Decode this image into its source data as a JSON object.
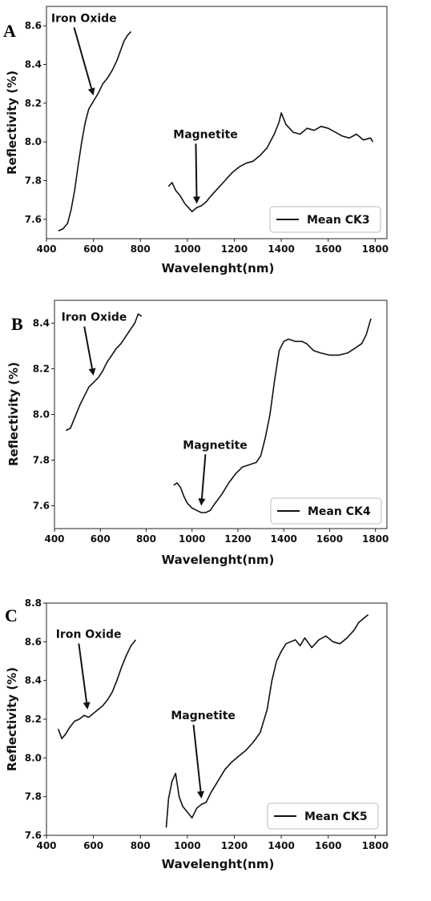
{
  "chart_data": [
    {
      "type": "line",
      "panel_label": "A",
      "xlabel": "Wavelenght(nm)",
      "ylabel": "Reflectivity (%)",
      "xlim": [
        400,
        1850
      ],
      "ylim": [
        7.5,
        8.7
      ],
      "xticks": [
        400,
        600,
        800,
        1000,
        1200,
        1400,
        1600,
        1800
      ],
      "yticks": [
        7.6,
        7.8,
        8.0,
        8.2,
        8.4,
        8.6
      ],
      "legend": {
        "label": "Mean CK3",
        "position": "lower-right"
      },
      "annotations": [
        {
          "text": "Iron Oxide",
          "text_x": 420,
          "text_y": 8.62,
          "point_x": 600,
          "point_y": 8.24
        },
        {
          "text": "Magnetite",
          "text_x": 940,
          "text_y": 8.02,
          "point_x": 1040,
          "point_y": 7.68
        }
      ],
      "series": [
        {
          "segments": [
            [
              [
                450,
                7.54
              ],
              [
                470,
                7.55
              ],
              [
                490,
                7.58
              ],
              [
                505,
                7.65
              ],
              [
                520,
                7.75
              ],
              [
                535,
                7.88
              ],
              [
                550,
                8.0
              ],
              [
                565,
                8.1
              ],
              [
                580,
                8.17
              ],
              [
                600,
                8.21
              ],
              [
                620,
                8.25
              ],
              [
                640,
                8.3
              ],
              [
                660,
                8.33
              ],
              [
                680,
                8.37
              ],
              [
                700,
                8.42
              ],
              [
                715,
                8.47
              ],
              [
                730,
                8.52
              ],
              [
                745,
                8.55
              ],
              [
                760,
                8.57
              ]
            ],
            [
              [
                920,
                7.77
              ],
              [
                935,
                7.79
              ],
              [
                950,
                7.75
              ],
              [
                970,
                7.72
              ],
              [
                990,
                7.68
              ],
              [
                1005,
                7.66
              ],
              [
                1020,
                7.64
              ],
              [
                1040,
                7.66
              ],
              [
                1060,
                7.67
              ],
              [
                1080,
                7.69
              ],
              [
                1100,
                7.72
              ],
              [
                1130,
                7.76
              ],
              [
                1160,
                7.8
              ],
              [
                1190,
                7.84
              ],
              [
                1220,
                7.87
              ],
              [
                1250,
                7.89
              ],
              [
                1280,
                7.9
              ],
              [
                1310,
                7.93
              ],
              [
                1340,
                7.97
              ],
              [
                1370,
                8.04
              ],
              [
                1390,
                8.1
              ],
              [
                1400,
                8.15
              ],
              [
                1420,
                8.09
              ],
              [
                1450,
                8.05
              ],
              [
                1480,
                8.04
              ],
              [
                1510,
                8.07
              ],
              [
                1540,
                8.06
              ],
              [
                1570,
                8.08
              ],
              [
                1600,
                8.07
              ],
              [
                1630,
                8.05
              ],
              [
                1660,
                8.03
              ],
              [
                1690,
                8.02
              ],
              [
                1720,
                8.04
              ],
              [
                1750,
                8.01
              ],
              [
                1780,
                8.02
              ],
              [
                1790,
                8.0
              ]
            ]
          ]
        }
      ]
    },
    {
      "type": "line",
      "panel_label": "B",
      "xlabel": "Wavelenght(nm)",
      "ylabel": "Reflectivity (%)",
      "xlim": [
        400,
        1850
      ],
      "ylim": [
        7.5,
        8.5
      ],
      "xticks": [
        400,
        600,
        800,
        1000,
        1200,
        1400,
        1600,
        1800
      ],
      "yticks": [
        7.6,
        7.8,
        8.0,
        8.2,
        8.4
      ],
      "legend": {
        "label": "Mean CK4",
        "position": "lower-right"
      },
      "annotations": [
        {
          "text": "Iron Oxide",
          "text_x": 430,
          "text_y": 8.41,
          "point_x": 570,
          "point_y": 8.17
        },
        {
          "text": "Magnetite",
          "text_x": 960,
          "text_y": 7.85,
          "point_x": 1040,
          "point_y": 7.6
        }
      ],
      "series": [
        {
          "segments": [
            [
              [
                450,
                7.93
              ],
              [
                470,
                7.94
              ],
              [
                490,
                7.99
              ],
              [
                510,
                8.04
              ],
              [
                530,
                8.08
              ],
              [
                550,
                8.12
              ],
              [
                570,
                8.14
              ],
              [
                590,
                8.16
              ],
              [
                610,
                8.19
              ],
              [
                630,
                8.23
              ],
              [
                650,
                8.26
              ],
              [
                670,
                8.29
              ],
              [
                690,
                8.31
              ],
              [
                710,
                8.34
              ],
              [
                730,
                8.37
              ],
              [
                750,
                8.4
              ],
              [
                765,
                8.44
              ],
              [
                780,
                8.43
              ]
            ],
            [
              [
                920,
                7.69
              ],
              [
                935,
                7.7
              ],
              [
                950,
                7.68
              ],
              [
                965,
                7.64
              ],
              [
                980,
                7.61
              ],
              [
                1000,
                7.59
              ],
              [
                1020,
                7.58
              ],
              [
                1040,
                7.57
              ],
              [
                1060,
                7.57
              ],
              [
                1080,
                7.58
              ],
              [
                1100,
                7.61
              ],
              [
                1130,
                7.65
              ],
              [
                1160,
                7.7
              ],
              [
                1190,
                7.74
              ],
              [
                1220,
                7.77
              ],
              [
                1250,
                7.78
              ],
              [
                1280,
                7.79
              ],
              [
                1300,
                7.82
              ],
              [
                1320,
                7.9
              ],
              [
                1340,
                8.0
              ],
              [
                1360,
                8.15
              ],
              [
                1380,
                8.28
              ],
              [
                1400,
                8.32
              ],
              [
                1420,
                8.33
              ],
              [
                1450,
                8.32
              ],
              [
                1480,
                8.32
              ],
              [
                1500,
                8.31
              ],
              [
                1530,
                8.28
              ],
              [
                1560,
                8.27
              ],
              [
                1600,
                8.26
              ],
              [
                1640,
                8.26
              ],
              [
                1680,
                8.27
              ],
              [
                1710,
                8.29
              ],
              [
                1740,
                8.31
              ],
              [
                1760,
                8.35
              ],
              [
                1780,
                8.42
              ]
            ]
          ]
        }
      ]
    },
    {
      "type": "line",
      "panel_label": "C",
      "xlabel": "Wavelenght(nm)",
      "ylabel": "Reflectivity (%)",
      "xlim": [
        400,
        1850
      ],
      "ylim": [
        7.6,
        8.8
      ],
      "xticks": [
        400,
        600,
        800,
        1000,
        1200,
        1400,
        1600,
        1800
      ],
      "yticks": [
        7.6,
        7.8,
        8.0,
        8.2,
        8.4,
        8.6,
        8.8
      ],
      "legend": {
        "label": "Mean CK5",
        "position": "lower-right"
      },
      "annotations": [
        {
          "text": "Iron Oxide",
          "text_x": 440,
          "text_y": 8.62,
          "point_x": 575,
          "point_y": 8.25
        },
        {
          "text": "Magnetite",
          "text_x": 930,
          "text_y": 8.2,
          "point_x": 1060,
          "point_y": 7.79
        }
      ],
      "series": [
        {
          "segments": [
            [
              [
                450,
                8.15
              ],
              [
                465,
                8.1
              ],
              [
                480,
                8.12
              ],
              [
                500,
                8.16
              ],
              [
                520,
                8.19
              ],
              [
                540,
                8.2
              ],
              [
                560,
                8.22
              ],
              [
                580,
                8.21
              ],
              [
                600,
                8.23
              ],
              [
                620,
                8.25
              ],
              [
                640,
                8.27
              ],
              [
                660,
                8.3
              ],
              [
                680,
                8.34
              ],
              [
                700,
                8.4
              ],
              [
                720,
                8.47
              ],
              [
                740,
                8.53
              ],
              [
                760,
                8.58
              ],
              [
                780,
                8.61
              ]
            ],
            [
              [
                910,
                7.64
              ],
              [
                920,
                7.79
              ],
              [
                935,
                7.88
              ],
              [
                950,
                7.92
              ],
              [
                965,
                7.8
              ],
              [
                980,
                7.75
              ],
              [
                1000,
                7.72
              ],
              [
                1020,
                7.69
              ],
              [
                1040,
                7.74
              ],
              [
                1060,
                7.76
              ],
              [
                1080,
                7.77
              ],
              [
                1100,
                7.82
              ],
              [
                1130,
                7.88
              ],
              [
                1160,
                7.94
              ],
              [
                1190,
                7.98
              ],
              [
                1220,
                8.01
              ],
              [
                1250,
                8.04
              ],
              [
                1280,
                8.08
              ],
              [
                1310,
                8.13
              ],
              [
                1340,
                8.25
              ],
              [
                1360,
                8.4
              ],
              [
                1380,
                8.5
              ],
              [
                1400,
                8.55
              ],
              [
                1420,
                8.59
              ],
              [
                1440,
                8.6
              ],
              [
                1460,
                8.61
              ],
              [
                1480,
                8.58
              ],
              [
                1500,
                8.62
              ],
              [
                1530,
                8.57
              ],
              [
                1560,
                8.61
              ],
              [
                1590,
                8.63
              ],
              [
                1620,
                8.6
              ],
              [
                1650,
                8.59
              ],
              [
                1680,
                8.62
              ],
              [
                1710,
                8.66
              ],
              [
                1730,
                8.7
              ],
              [
                1750,
                8.72
              ],
              [
                1770,
                8.74
              ]
            ]
          ]
        }
      ]
    }
  ]
}
